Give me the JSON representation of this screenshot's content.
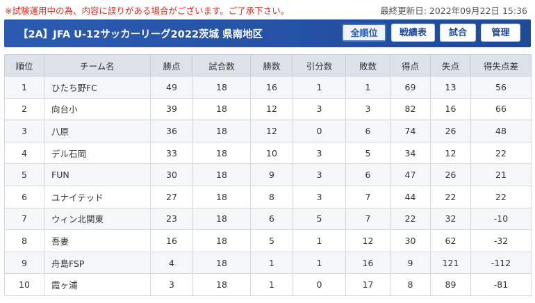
{
  "notice": "※試験運用中の為、内容に誤りがある場合がございます。ご了承下さい。",
  "updated": "最終更新日: 2022年09月22日 15:36",
  "title": "【2A】JFA U-12サッカーリーグ2022茨城 県南地区",
  "buttons": {
    "all": "全順位",
    "results": "戦績表",
    "match": "試合",
    "admin": "管理"
  },
  "columns": [
    "順位",
    "チーム名",
    "勝点",
    "試合数",
    "勝数",
    "引分数",
    "敗数",
    "得点",
    "失点",
    "得失点差"
  ],
  "rows": [
    [
      "1",
      "ひたち野FC",
      "49",
      "18",
      "16",
      "1",
      "1",
      "69",
      "13",
      "56"
    ],
    [
      "2",
      "向台小",
      "39",
      "18",
      "12",
      "3",
      "3",
      "82",
      "16",
      "66"
    ],
    [
      "3",
      "八原",
      "36",
      "18",
      "12",
      "0",
      "6",
      "74",
      "26",
      "48"
    ],
    [
      "4",
      "デル石岡",
      "33",
      "18",
      "10",
      "3",
      "5",
      "34",
      "12",
      "22"
    ],
    [
      "5",
      "FUN",
      "30",
      "18",
      "9",
      "3",
      "6",
      "47",
      "26",
      "21"
    ],
    [
      "6",
      "ユナイテッド",
      "27",
      "18",
      "8",
      "3",
      "7",
      "44",
      "22",
      "22"
    ],
    [
      "7",
      "ウィン北関東",
      "23",
      "18",
      "6",
      "5",
      "7",
      "22",
      "32",
      "-10"
    ],
    [
      "8",
      "吾妻",
      "16",
      "18",
      "5",
      "1",
      "12",
      "30",
      "62",
      "-32"
    ],
    [
      "9",
      "舟島FSP",
      "4",
      "18",
      "1",
      "1",
      "16",
      "9",
      "121",
      "-112"
    ],
    [
      "10",
      "霞ヶ浦",
      "3",
      "18",
      "1",
      "0",
      "17",
      "8",
      "89",
      "-81"
    ]
  ]
}
